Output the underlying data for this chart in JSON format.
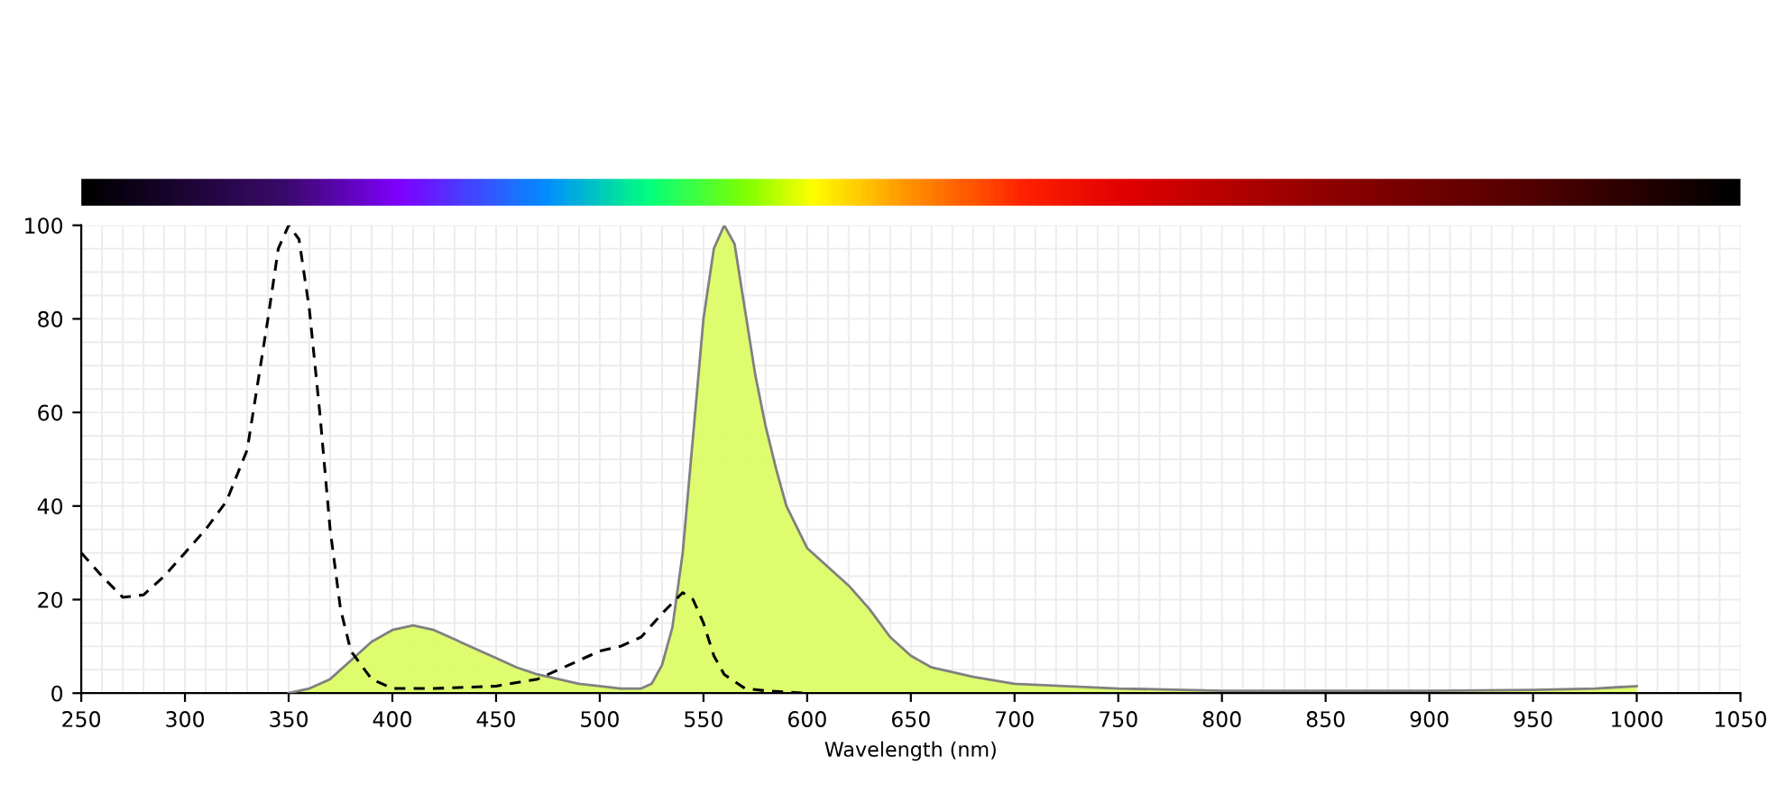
{
  "chart_data": {
    "type": "area",
    "xlabel": "Wavelength (nm)",
    "xlim": [
      250,
      1050
    ],
    "xticks": [
      250,
      300,
      350,
      400,
      450,
      500,
      550,
      600,
      650,
      700,
      750,
      800,
      850,
      900,
      950,
      1000,
      1050
    ],
    "ylim": [
      0,
      100
    ],
    "yticks": [
      0,
      20,
      40,
      60,
      80,
      100
    ],
    "grid": true,
    "legend": false,
    "series": [
      {
        "color": "#dcfc66",
        "x": [
          350,
          360,
          370,
          380,
          390,
          400,
          410,
          420,
          430,
          440,
          450,
          460,
          470,
          480,
          490,
          500,
          510,
          520,
          525,
          530,
          535,
          540,
          545,
          550,
          555,
          560,
          565,
          570,
          575,
          580,
          585,
          590,
          600,
          610,
          620,
          630,
          640,
          650,
          660,
          680,
          700,
          750,
          800,
          850,
          900,
          950,
          980,
          1000
        ],
        "values": [
          0,
          1,
          3,
          7,
          11,
          13.5,
          14.5,
          13.5,
          11.5,
          9.5,
          7.5,
          5.5,
          4,
          3,
          2,
          1.5,
          1,
          1,
          2,
          6,
          14,
          30,
          55,
          80,
          95,
          100,
          96,
          82,
          68,
          57,
          48,
          40,
          31,
          27,
          23,
          18,
          12,
          8,
          5.5,
          3.5,
          2,
          1,
          0.5,
          0.5,
          0.5,
          0.7,
          1,
          1.5
        ]
      },
      {
        "type": "line",
        "color": "#000000",
        "line_style": "dashed",
        "x": [
          250,
          260,
          270,
          280,
          290,
          300,
          310,
          320,
          330,
          340,
          345,
          350,
          355,
          360,
          365,
          370,
          375,
          380,
          390,
          400,
          420,
          450,
          470,
          480,
          490,
          500,
          510,
          520,
          530,
          540,
          545,
          550,
          555,
          560,
          570,
          580,
          600
        ],
        "values": [
          30,
          25,
          20.5,
          21,
          25,
          30,
          35,
          41,
          52,
          80,
          95,
          100,
          97,
          82,
          60,
          35,
          18,
          9,
          3,
          1,
          1,
          1.5,
          3,
          5,
          7,
          9,
          10,
          12,
          17,
          21.5,
          20,
          15,
          8,
          4,
          1,
          0.5,
          0
        ]
      }
    ]
  }
}
